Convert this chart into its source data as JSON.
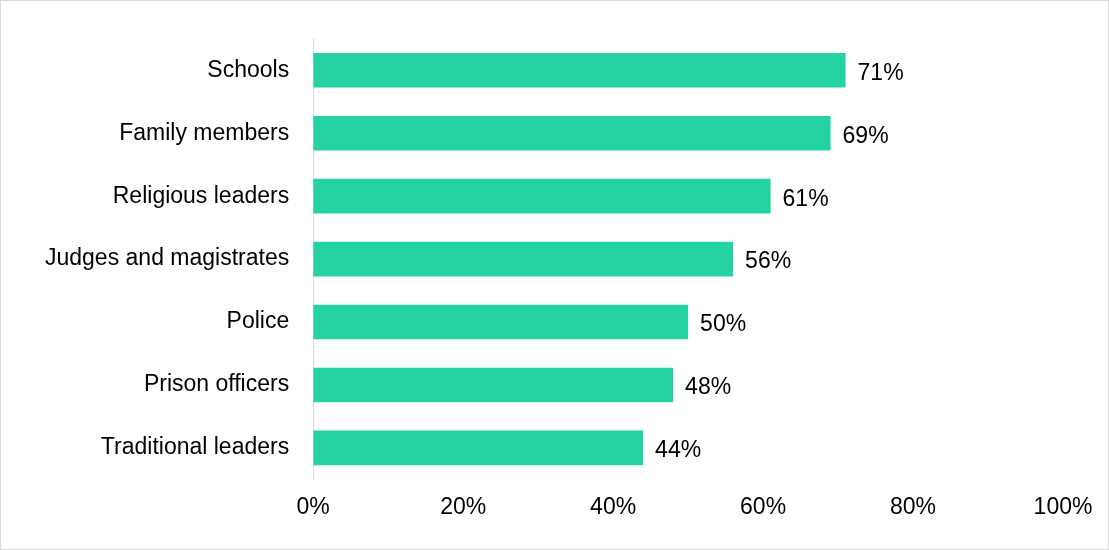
{
  "chart_data": {
    "type": "bar",
    "orientation": "horizontal",
    "categories": [
      "Schools",
      "Family members",
      "Religious leaders",
      "Judges and magistrates",
      "Police",
      "Prison officers",
      "Traditional leaders"
    ],
    "values": [
      71,
      69,
      61,
      56,
      50,
      48,
      44
    ],
    "value_labels": [
      "71%",
      "69%",
      "61%",
      "56%",
      "50%",
      "48%",
      "44%"
    ],
    "color": "#25d3a2",
    "xlim": [
      0,
      100
    ],
    "xticks": [
      {
        "value": 0,
        "label": "0%"
      },
      {
        "value": 20,
        "label": "20%"
      },
      {
        "value": 40,
        "label": "40%"
      },
      {
        "value": 60,
        "label": "60%"
      },
      {
        "value": 80,
        "label": "80%"
      },
      {
        "value": 100,
        "label": "100%"
      }
    ]
  }
}
